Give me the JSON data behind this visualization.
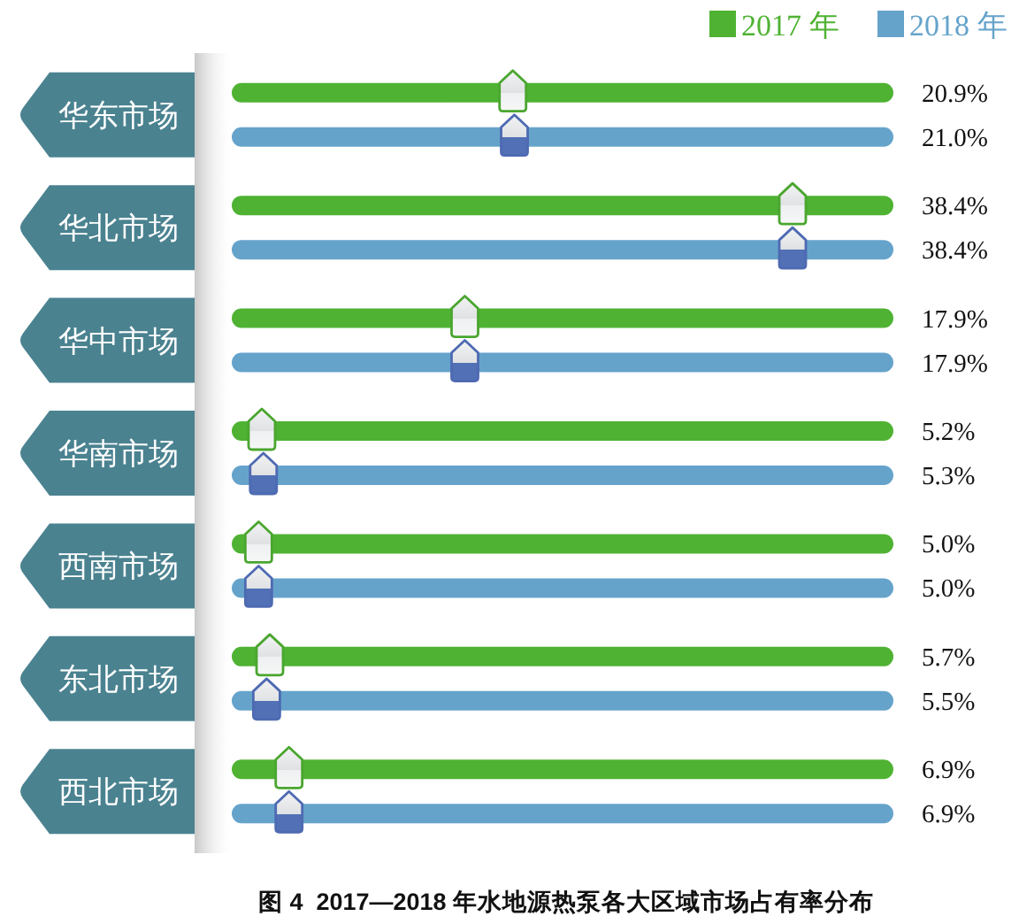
{
  "chart_data": {
    "type": "other",
    "title": "图 4  2017—2018 年水地源热泵各大区域市场占有率分布",
    "categories": [
      "华东市场",
      "华北市场",
      "华中市场",
      "华南市场",
      "西南市场",
      "东北市场",
      "西北市场"
    ],
    "series": [
      {
        "name": "2017 年",
        "color": "#4fb233",
        "values": [
          20.9,
          38.4,
          17.9,
          5.2,
          5.0,
          5.7,
          6.9
        ],
        "value_labels": [
          "20.9%",
          "38.4%",
          "17.9%",
          "5.2%",
          "5.0%",
          "5.7%",
          "6.9%"
        ]
      },
      {
        "name": "2018 年",
        "color": "#65a3cb",
        "values": [
          21.0,
          38.4,
          17.9,
          5.3,
          5.0,
          5.5,
          6.9
        ],
        "value_labels": [
          "21.0%",
          "38.4%",
          "17.9%",
          "5.3%",
          "5.0%",
          "5.5%",
          "6.9%"
        ]
      }
    ],
    "legend": "top right"
  }
}
